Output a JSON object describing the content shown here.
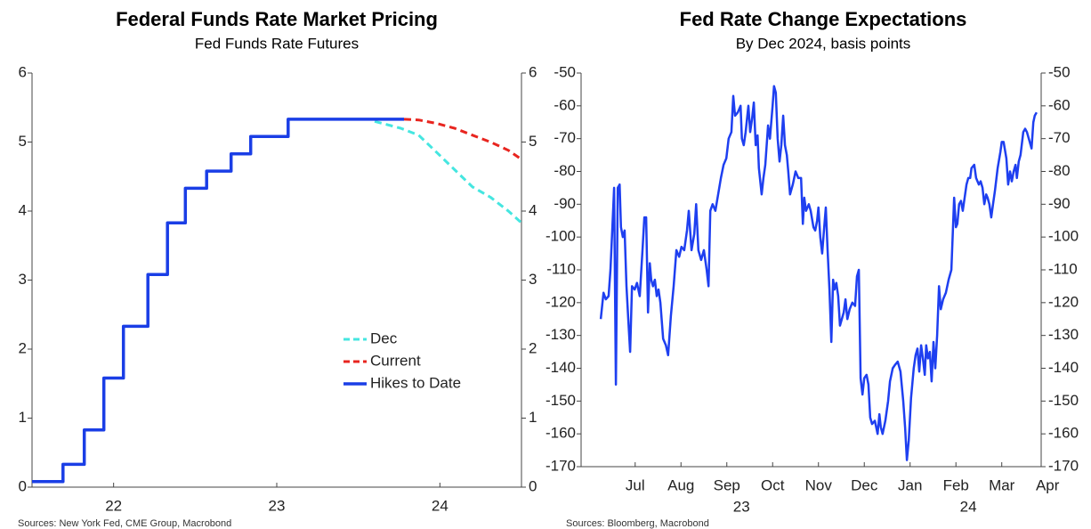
{
  "chart_data": [
    {
      "type": "line",
      "title": "Federal Funds Rate Market Pricing",
      "subtitle": "Fed Funds Rate Futures",
      "source": "Sources: New York Fed, CME Group, Macrobond",
      "xlim": [
        2022,
        2025
      ],
      "xticks": [
        {
          "value": 2022.5,
          "label": "22"
        },
        {
          "value": 2023.5,
          "label": "23"
        },
        {
          "value": 2024.5,
          "label": "24"
        }
      ],
      "ylim": [
        0,
        6
      ],
      "yticks": [
        0,
        1,
        2,
        3,
        4,
        5,
        6
      ],
      "y2lim": [
        0,
        6
      ],
      "y2ticks": [
        0,
        1,
        2,
        3,
        4,
        5,
        6
      ],
      "legend": "right",
      "series": [
        {
          "name": "Dec",
          "color": "#45e6e0",
          "style": "dashed",
          "width": 3,
          "x": [
            2024.1,
            2024.26,
            2024.37,
            2024.48,
            2024.59,
            2024.7,
            2024.81,
            2024.92,
            2025.0
          ],
          "values": [
            5.3,
            5.2,
            5.1,
            4.85,
            4.6,
            4.35,
            4.2,
            4.0,
            3.83
          ]
        },
        {
          "name": "Current",
          "color": "#e8251f",
          "style": "dashed",
          "width": 3,
          "x": [
            2024.28,
            2024.37,
            2024.48,
            2024.59,
            2024.7,
            2024.81,
            2024.92,
            2025.0
          ],
          "values": [
            5.33,
            5.32,
            5.27,
            5.2,
            5.1,
            5.0,
            4.88,
            4.75
          ]
        },
        {
          "name": "Hikes to Date",
          "color": "#1a3ee6",
          "style": "solid",
          "width": 3.5,
          "x": [
            2022.0,
            2022.19,
            2022.19,
            2022.32,
            2022.32,
            2022.44,
            2022.44,
            2022.56,
            2022.56,
            2022.71,
            2022.71,
            2022.83,
            2022.83,
            2022.94,
            2022.94,
            2023.07,
            2023.07,
            2023.22,
            2023.22,
            2023.34,
            2023.34,
            2023.57,
            2023.57,
            2024.28
          ],
          "values": [
            0.08,
            0.08,
            0.33,
            0.33,
            0.83,
            0.83,
            1.58,
            1.58,
            2.33,
            2.33,
            3.08,
            3.08,
            3.83,
            3.83,
            4.33,
            4.33,
            4.58,
            4.58,
            4.83,
            4.83,
            5.08,
            5.08,
            5.33,
            5.33
          ]
        }
      ]
    },
    {
      "type": "line",
      "title": "Fed Rate Change Expectations",
      "subtitle": "By Dec 2024, basis points",
      "source": "Sources: Bloomberg, Macrobond",
      "xlim": [
        6.32,
        16.36
      ],
      "xticks": [
        {
          "value": 7.5,
          "label": "Jul"
        },
        {
          "value": 8.5,
          "label": "Aug"
        },
        {
          "value": 9.5,
          "label": "Sep"
        },
        {
          "value": 10.5,
          "label": "Oct"
        },
        {
          "value": 11.5,
          "label": "Nov"
        },
        {
          "value": 12.5,
          "label": "Dec"
        },
        {
          "value": 13.5,
          "label": "Jan"
        },
        {
          "value": 14.5,
          "label": "Feb"
        },
        {
          "value": 15.5,
          "label": "Mar"
        },
        {
          "value": 16.5,
          "label": "Apr"
        }
      ],
      "secondary_labels": [
        {
          "value": 9.82,
          "label": "23"
        },
        {
          "value": 14.77,
          "label": "24"
        }
      ],
      "ylim": [
        -170,
        -50
      ],
      "yticks": [
        -170,
        -160,
        -150,
        -140,
        -130,
        -120,
        -110,
        -100,
        -90,
        -80,
        -70,
        -60,
        -50
      ],
      "y2lim": [
        -170,
        -50
      ],
      "y2ticks": [
        -170,
        -160,
        -150,
        -140,
        -130,
        -120,
        -110,
        -100,
        -90,
        -80,
        -70,
        -60,
        -50
      ],
      "series": [
        {
          "color": "#1e3ff0",
          "style": "solid",
          "width": 2.5,
          "x": [
            6.75,
            6.81,
            6.86,
            6.92,
            6.96,
            7.0,
            7.04,
            7.08,
            7.12,
            7.16,
            7.19,
            7.23,
            7.27,
            7.31,
            7.35,
            7.39,
            7.43,
            7.49,
            7.54,
            7.6,
            7.66,
            7.7,
            7.74,
            7.78,
            7.82,
            7.85,
            7.89,
            7.93,
            7.97,
            8.01,
            8.05,
            8.11,
            8.17,
            8.22,
            8.28,
            8.34,
            8.4,
            8.46,
            8.51,
            8.57,
            8.63,
            8.67,
            8.73,
            8.79,
            8.83,
            8.88,
            8.94,
            9.0,
            9.06,
            9.1,
            9.14,
            9.19,
            9.25,
            9.31,
            9.37,
            9.43,
            9.49,
            9.54,
            9.6,
            9.64,
            9.68,
            9.74,
            9.8,
            9.83,
            9.87,
            9.91,
            9.97,
            10.01,
            10.05,
            10.09,
            10.13,
            10.17,
            10.2,
            10.26,
            10.3,
            10.34,
            10.4,
            10.44,
            10.5,
            10.53,
            10.57,
            10.61,
            10.65,
            10.69,
            10.73,
            10.77,
            10.81,
            10.84,
            10.88,
            10.94,
            11.0,
            11.06,
            11.12,
            11.16,
            11.19,
            11.23,
            11.29,
            11.33,
            11.39,
            11.43,
            11.47,
            11.5,
            11.54,
            11.58,
            11.62,
            11.66,
            11.7,
            11.74,
            11.78,
            11.82,
            11.85,
            11.89,
            11.93,
            11.97,
            12.01,
            12.05,
            12.09,
            12.13,
            12.18,
            12.24,
            12.3,
            12.34,
            12.38,
            12.42,
            12.46,
            12.5,
            12.55,
            12.59,
            12.63,
            12.67,
            12.73,
            12.79,
            12.83,
            12.86,
            12.9,
            12.96,
            13.02,
            13.06,
            13.12,
            13.17,
            13.23,
            13.29,
            13.35,
            13.39,
            13.43,
            13.47,
            13.52,
            13.58,
            13.62,
            13.66,
            13.7,
            13.74,
            13.78,
            13.82,
            13.85,
            13.89,
            13.93,
            13.97,
            14.01,
            14.05,
            14.09,
            14.13,
            14.17,
            14.22,
            14.28,
            14.34,
            14.4,
            14.46,
            14.5,
            14.53,
            14.57,
            14.61,
            14.65,
            14.69,
            14.73,
            14.77,
            14.81,
            14.84,
            14.9,
            14.94,
            15.0,
            15.04,
            15.08,
            15.12,
            15.16,
            15.19,
            15.23,
            15.27,
            15.31,
            15.35,
            15.41,
            15.47,
            15.5,
            15.54,
            15.6,
            15.64,
            15.68,
            15.72,
            15.76,
            15.8,
            15.83,
            15.87,
            15.91,
            15.97,
            16.01,
            16.05,
            16.09,
            16.15,
            16.19,
            16.22,
            16.26
          ],
          "values": [
            -125,
            -117,
            -119,
            -118,
            -110,
            -98,
            -85,
            -145,
            -85,
            -84,
            -97,
            -100,
            -98,
            -115,
            -125,
            -135,
            -115,
            -116,
            -114,
            -118,
            -104,
            -94,
            -94,
            -123,
            -108,
            -113,
            -115,
            -113,
            -118,
            -116,
            -120,
            -131,
            -133,
            -136,
            -124,
            -115,
            -104,
            -106,
            -103,
            -104,
            -98,
            -92,
            -104,
            -99,
            -90,
            -104,
            -107,
            -104,
            -110,
            -115,
            -92,
            -90,
            -92,
            -87,
            -82,
            -78,
            -76,
            -70,
            -68,
            -57,
            -63,
            -62,
            -60,
            -70,
            -72,
            -68,
            -60,
            -68,
            -64,
            -59,
            -72,
            -69,
            -79,
            -87,
            -82,
            -78,
            -66,
            -70,
            -60,
            -54,
            -56,
            -70,
            -77,
            -72,
            -63,
            -72,
            -75,
            -80,
            -87,
            -84,
            -80,
            -82,
            -82,
            -96,
            -88,
            -92,
            -90,
            -92,
            -97,
            -98,
            -95,
            -91,
            -100,
            -105,
            -98,
            -91,
            -104,
            -116,
            -132,
            -113,
            -116,
            -114,
            -118,
            -127,
            -125,
            -123,
            -119,
            -125,
            -122,
            -120,
            -121,
            -112,
            -110,
            -143,
            -148,
            -143,
            -142,
            -145,
            -155,
            -157,
            -156,
            -160,
            -154,
            -158,
            -160,
            -156,
            -150,
            -144,
            -140,
            -139,
            -138,
            -141,
            -150,
            -158,
            -168,
            -162,
            -149,
            -140,
            -136,
            -134,
            -141,
            -133,
            -137,
            -142,
            -133,
            -137,
            -135,
            -144,
            -132,
            -140,
            -130,
            -115,
            -122,
            -119,
            -117,
            -113,
            -110,
            -88,
            -97,
            -96,
            -90,
            -89,
            -92,
            -88,
            -84,
            -82,
            -82,
            -79,
            -78,
            -82,
            -84,
            -83,
            -85,
            -90,
            -87,
            -88,
            -90,
            -94,
            -90,
            -86,
            -79,
            -74,
            -71,
            -71,
            -76,
            -84,
            -80,
            -83,
            -80,
            -78,
            -82,
            -77,
            -75,
            -68,
            -67,
            -68,
            -70,
            -73,
            -65,
            -63,
            -62
          ]
        }
      ]
    }
  ]
}
